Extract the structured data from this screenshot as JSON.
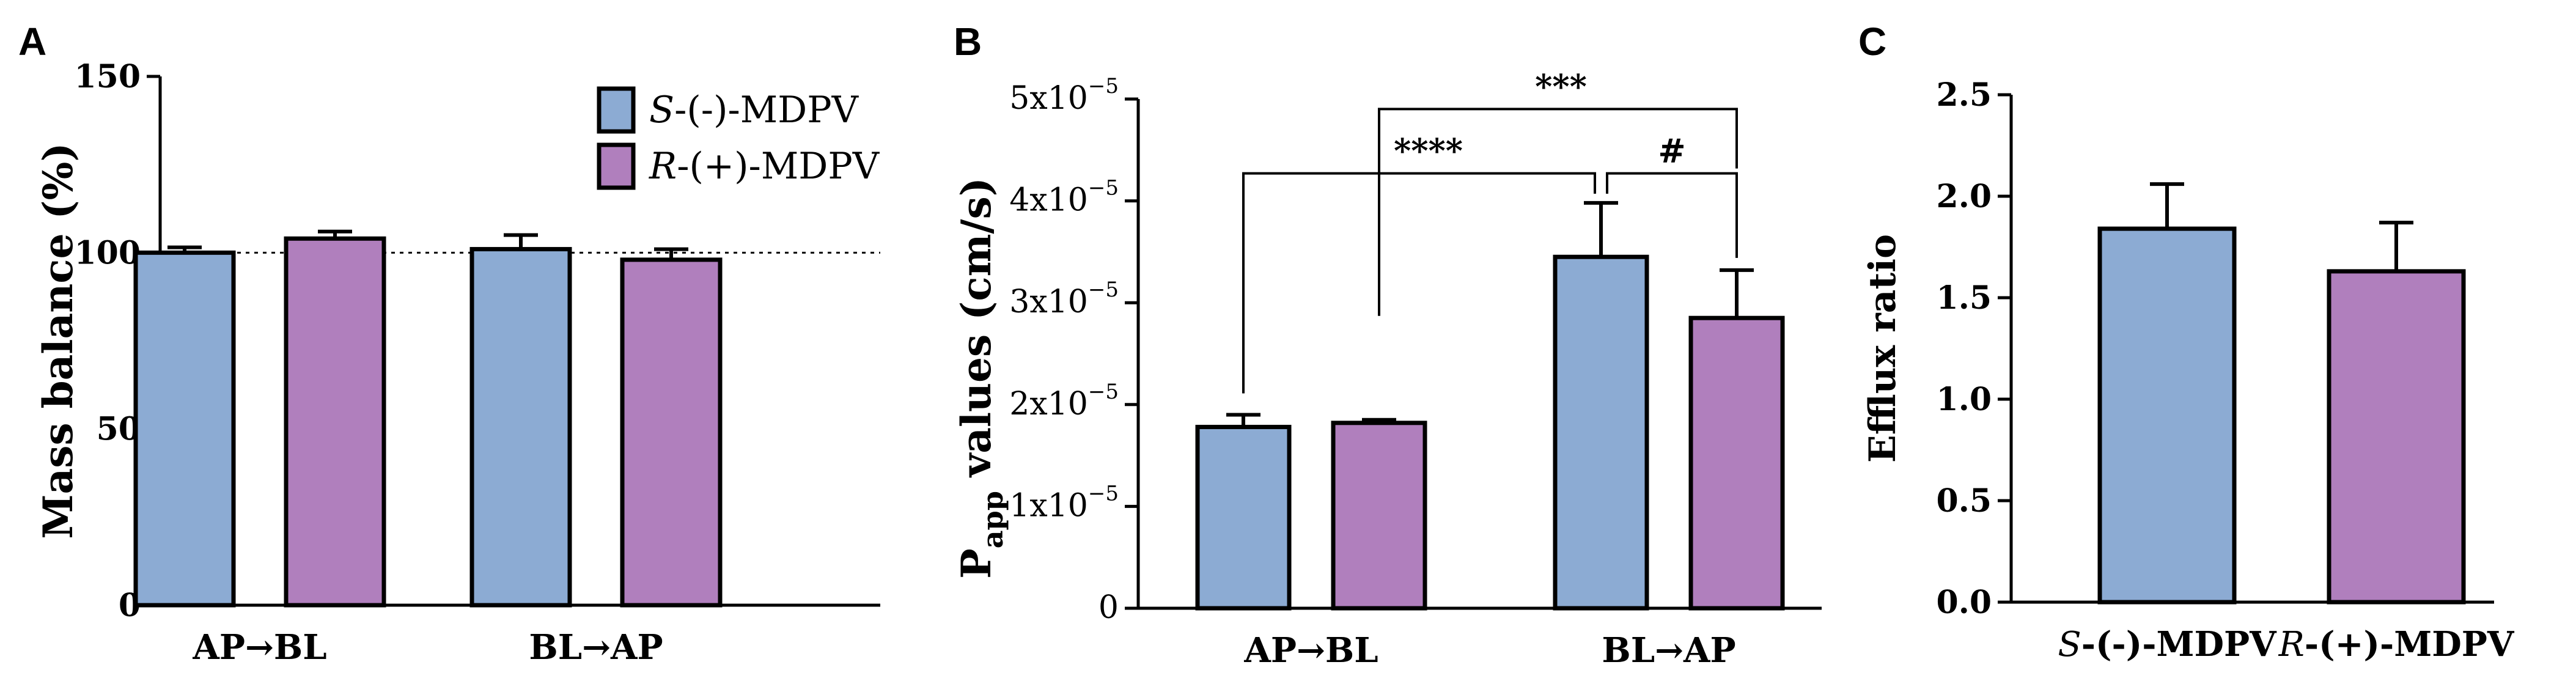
{
  "colors": {
    "s_mdpv": "#8cabd3",
    "r_mdpv": "#b07fbd",
    "stroke": "#000000"
  },
  "chart_data": [
    {
      "panel": "A",
      "type": "bar",
      "ylabel": "Mass balance (%)",
      "xlabel": "",
      "ylim": [
        0,
        150
      ],
      "yticks": [
        0,
        50,
        100,
        150
      ],
      "reference_line": 100,
      "categories": [
        "AP→BL",
        "BL→AP"
      ],
      "series": [
        {
          "name": "S-(-)-MDPV",
          "name_italic": "S",
          "name_rest": "-(-)-MDPV",
          "color_key": "s_mdpv",
          "values": [
            100,
            101
          ],
          "errors": [
            1.5,
            4
          ]
        },
        {
          "name": "R-(+)-MDPV",
          "name_italic": "R",
          "name_rest": "-(+)-MDPV",
          "color_key": "r_mdpv",
          "values": [
            104,
            98
          ],
          "errors": [
            2,
            3
          ]
        }
      ],
      "legend": "top-right"
    },
    {
      "panel": "B",
      "type": "bar",
      "ylabel_main": "P",
      "ylabel_sub": "app",
      "ylabel_rest": " values (cm/s)",
      "ylim": [
        0,
        5e-05
      ],
      "yticks": [
        0,
        1e-05,
        2e-05,
        3e-05,
        4e-05,
        5e-05
      ],
      "ytick_labels": [
        {
          "mant": "0",
          "exp": ""
        },
        {
          "mant": "1x10",
          "exp": "−5"
        },
        {
          "mant": "2x10",
          "exp": "−5"
        },
        {
          "mant": "3x10",
          "exp": "−5"
        },
        {
          "mant": "4x10",
          "exp": "−5"
        },
        {
          "mant": "5x10",
          "exp": "−5"
        }
      ],
      "categories": [
        "AP→BL",
        "BL→AP"
      ],
      "series": [
        {
          "name": "S-(-)-MDPV",
          "color_key": "s_mdpv",
          "values": [
            1.78e-05,
            3.45e-05
          ],
          "errors": [
            1.2e-06,
            5.3e-06
          ]
        },
        {
          "name": "R-(+)-MDPV",
          "color_key": "r_mdpv",
          "values": [
            1.82e-05,
            2.85e-05
          ],
          "errors": [
            3e-07,
            4.7e-06
          ]
        }
      ],
      "significance": [
        {
          "label": "****",
          "from": [
            0,
            0
          ],
          "to": [
            1,
            0
          ],
          "level": 4.3e-05
        },
        {
          "label": "#",
          "from": [
            1,
            0
          ],
          "to": [
            1,
            1
          ],
          "level": 4.3e-05,
          "inner": true
        },
        {
          "label": "***",
          "from": [
            0,
            1
          ],
          "to": [
            1,
            1
          ],
          "level": 4.9e-05
        }
      ]
    },
    {
      "panel": "C",
      "type": "bar",
      "ylabel": "Efflux ratio",
      "ylim": [
        0,
        2.5
      ],
      "yticks": [
        0.0,
        0.5,
        1.0,
        1.5,
        2.0,
        2.5
      ],
      "ytick_labels": [
        "0.0",
        "0.5",
        "1.0",
        "1.5",
        "2.0",
        "2.5"
      ],
      "categories": [
        {
          "italic": "S",
          "rest": "-(-)-MDPV"
        },
        {
          "italic": "R",
          "rest": "-(+)-MDPV"
        }
      ],
      "series": [
        {
          "name": "Efflux ratio",
          "values": [
            1.84,
            1.63
          ],
          "errors": [
            0.22,
            0.24
          ],
          "color_keys": [
            "s_mdpv",
            "r_mdpv"
          ]
        }
      ]
    }
  ]
}
